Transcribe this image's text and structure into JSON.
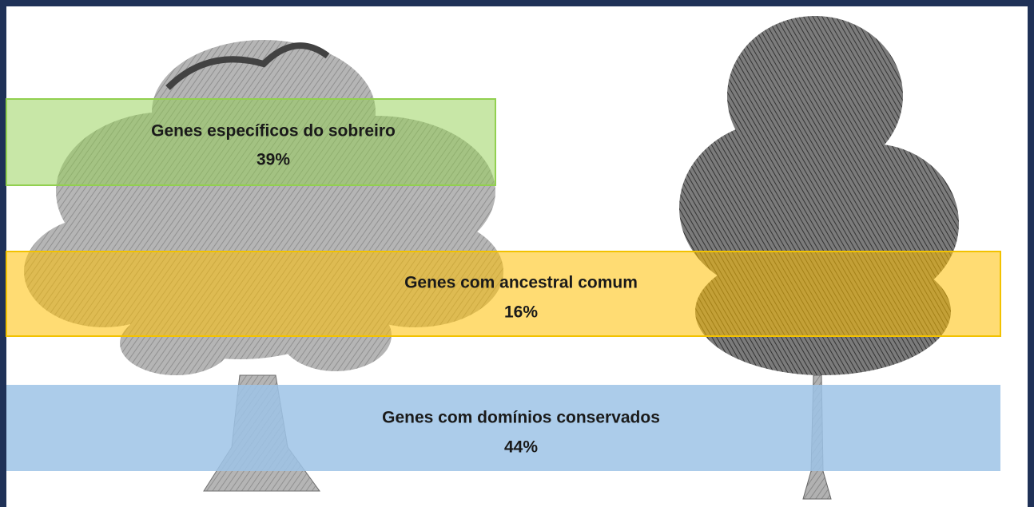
{
  "bands": [
    {
      "label": "Genes específicos do sobreiro",
      "value": "39%"
    },
    {
      "label": "Genes com ancestral comum",
      "value": "16%"
    },
    {
      "label": "Genes com domínios conservados",
      "value": "44%"
    }
  ]
}
